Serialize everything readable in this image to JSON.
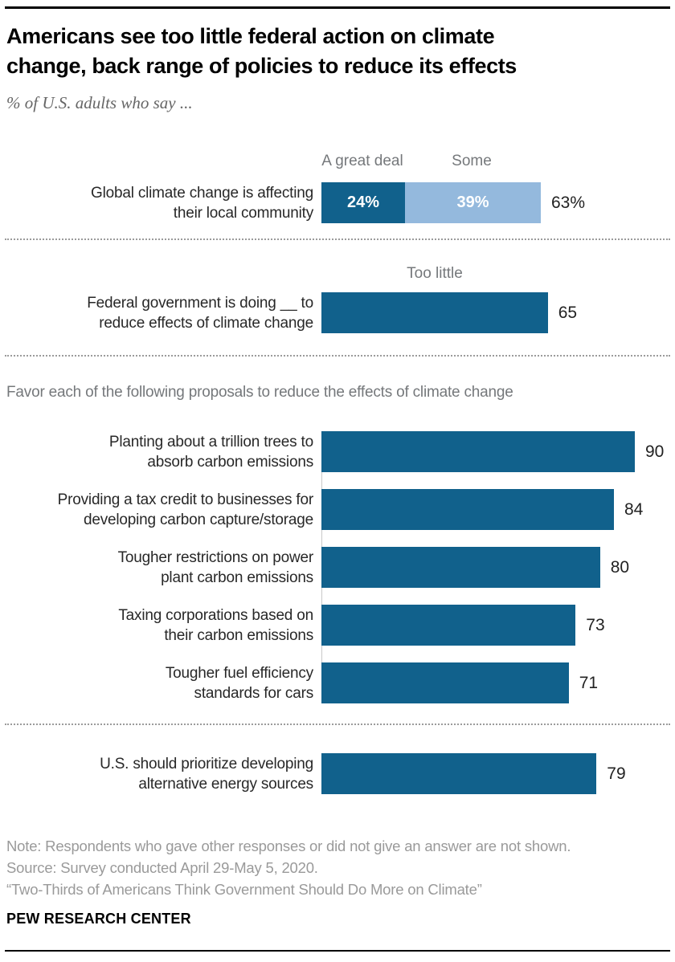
{
  "title": {
    "lines": [
      "Americans see too little federal action on climate",
      "change, back range of policies to reduce its effects"
    ]
  },
  "subtitle": "% of U.S. adults who say ...",
  "colors": {
    "dark_blue": "#11618c",
    "light_blue": "#94b9dd"
  },
  "community": {
    "headers": {
      "great_deal": "A great deal",
      "some": "Some"
    },
    "label_lines": [
      "Global climate change is affecting",
      "their local community"
    ],
    "segments": {
      "great_deal": {
        "value": 24,
        "label": "24%"
      },
      "some": {
        "value": 39,
        "label": "39%"
      }
    },
    "total_label": "63%"
  },
  "federal": {
    "header": "Too little",
    "label_lines": [
      "Federal government is doing __ to",
      "reduce effects of climate change"
    ],
    "value": 65
  },
  "favor": {
    "prompt": "Favor each of the following proposals to reduce the effects of climate change",
    "rows": [
      {
        "label_lines": [
          "Planting about a trillion trees to",
          "absorb carbon emissions"
        ],
        "value": 90
      },
      {
        "label_lines": [
          "Providing a tax credit to businesses for",
          "developing carbon capture/storage"
        ],
        "value": 84
      },
      {
        "label_lines": [
          "Tougher restrictions on power",
          "plant carbon emissions"
        ],
        "value": 80
      },
      {
        "label_lines": [
          "Taxing corporations based on",
          "their carbon emissions"
        ],
        "value": 73
      },
      {
        "label_lines": [
          "Tougher fuel efficiency",
          "standards for cars"
        ],
        "value": 71
      }
    ]
  },
  "alternative": {
    "label_lines": [
      "U.S. should prioritize developing",
      "alternative energy sources"
    ],
    "value": 79
  },
  "footer": {
    "note": "Note: Respondents who gave other responses or did not give an answer are not shown.",
    "source": "Source: Survey conducted April 29-May 5, 2020.",
    "quote": "“Two-Thirds of Americans Think Government Should Do More on Climate”",
    "org": "PEW RESEARCH CENTER"
  },
  "chart_data": {
    "type": "bar",
    "orientation": "horizontal",
    "unit": "% of U.S. adults",
    "title": "Americans see too little federal action on climate change, back range of policies to reduce its effects",
    "subtitle": "% of U.S. adults who say ...",
    "xlim": [
      0,
      92
    ],
    "grid": false,
    "groups": [
      {
        "question": "Global climate change is affecting their local community",
        "type": "stacked_bar",
        "series": [
          {
            "name": "A great deal",
            "value": 24,
            "color": "#11618c"
          },
          {
            "name": "Some",
            "value": 39,
            "color": "#94b9dd"
          }
        ],
        "total": 63
      },
      {
        "question": "Federal government is doing __ to reduce effects of climate change",
        "response": "Too little",
        "value": 65,
        "color": "#11618c"
      },
      {
        "question": "Favor each of the following proposals to reduce the effects of climate change",
        "categories": [
          "Planting about a trillion trees to absorb carbon emissions",
          "Providing a tax credit to businesses for developing carbon capture/storage",
          "Tougher restrictions on power plant carbon emissions",
          "Taxing corporations based on their carbon emissions",
          "Tougher fuel efficiency standards for cars"
        ],
        "values": [
          90,
          84,
          80,
          73,
          71
        ],
        "color": "#11618c"
      },
      {
        "question": "U.S. should prioritize developing alternative energy sources",
        "value": 79,
        "color": "#11618c"
      }
    ]
  }
}
